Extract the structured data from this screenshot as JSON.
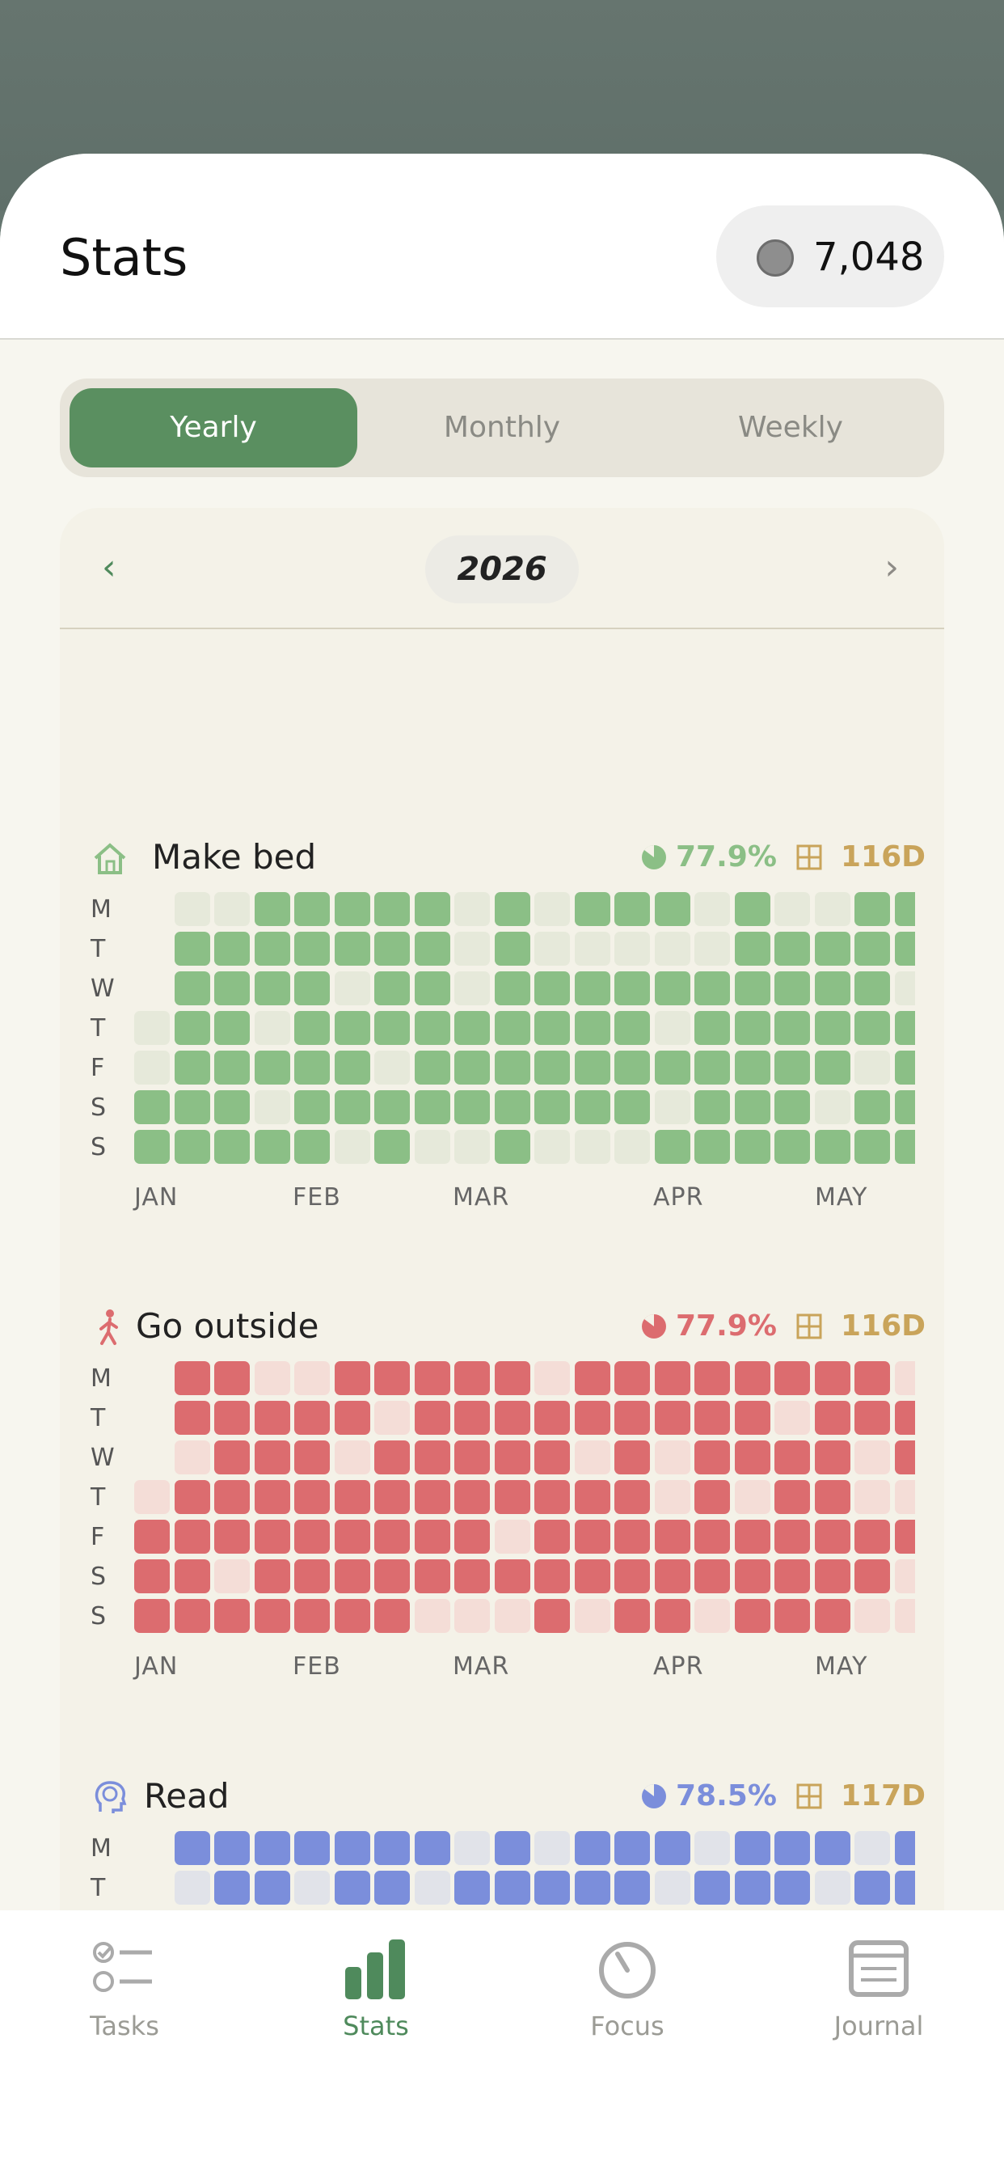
{
  "header": {
    "title": "Stats",
    "coins": "7,048"
  },
  "segments": {
    "items": [
      "Yearly",
      "Monthly",
      "Weekly"
    ],
    "active": "Yearly"
  },
  "year": {
    "label": "2026"
  },
  "day_labels": [
    "M",
    "T",
    "W",
    "T",
    "F",
    "S",
    "S"
  ],
  "months": [
    "JAN",
    "FEB",
    "MAR",
    "APR",
    "MAY"
  ],
  "habits": [
    {
      "name": "Make bed",
      "icon": "house-icon",
      "color": "#8bbf86",
      "empty": "#e6e9da",
      "rate": "77.9%",
      "days": "116D"
    },
    {
      "name": "Go outside",
      "icon": "walking-person-icon",
      "color": "#dc6c6f",
      "empty": "#f4ddd7",
      "rate": "77.9%",
      "days": "116D"
    },
    {
      "name": "Read",
      "icon": "brain-head-icon",
      "color": "#7b8edb",
      "empty": "#e1e3e9",
      "rate": "78.5%",
      "days": "117D"
    }
  ],
  "tabs": [
    {
      "label": "Tasks",
      "icon": "checklist-icon"
    },
    {
      "label": "Stats",
      "icon": "bar-chart-icon"
    },
    {
      "label": "Focus",
      "icon": "timer-icon"
    },
    {
      "label": "Journal",
      "icon": "journal-icon"
    }
  ]
}
